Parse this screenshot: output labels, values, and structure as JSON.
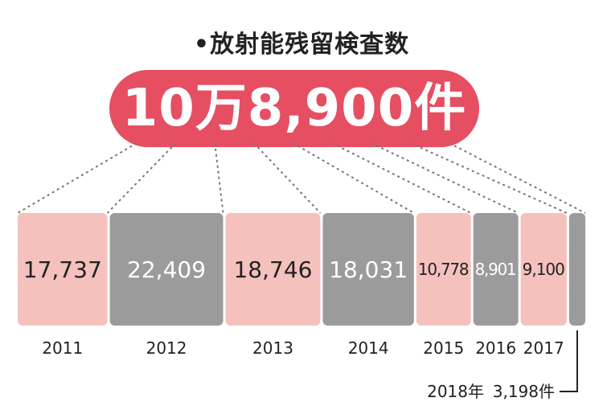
{
  "title": "•放射能残留検査数",
  "total": "10万8,900件",
  "colors": {
    "accent": "#e64e62",
    "light": "#f5c1bd",
    "dark": "#9b9b9b",
    "line": "#777777"
  },
  "chart_data": {
    "type": "bar",
    "categories": [
      "2011",
      "2012",
      "2013",
      "2014",
      "2015",
      "2016",
      "2017",
      "2018年"
    ],
    "values": [
      17737,
      22409,
      18746,
      18031,
      10778,
      8901,
      9100,
      3198
    ],
    "value_labels": [
      "17,737",
      "22,409",
      "18,746",
      "18,031",
      "10,778",
      "8,901",
      "9,100",
      "3,198件"
    ],
    "colors": [
      "#f5c1bd",
      "#9b9b9b",
      "#f5c1bd",
      "#9b9b9b",
      "#f5c1bd",
      "#9b9b9b",
      "#f5c1bd",
      "#9b9b9b"
    ],
    "text_colors": [
      "#222222",
      "#ffffff",
      "#222222",
      "#ffffff",
      "#222222",
      "#ffffff",
      "#222222",
      "#222222"
    ]
  }
}
